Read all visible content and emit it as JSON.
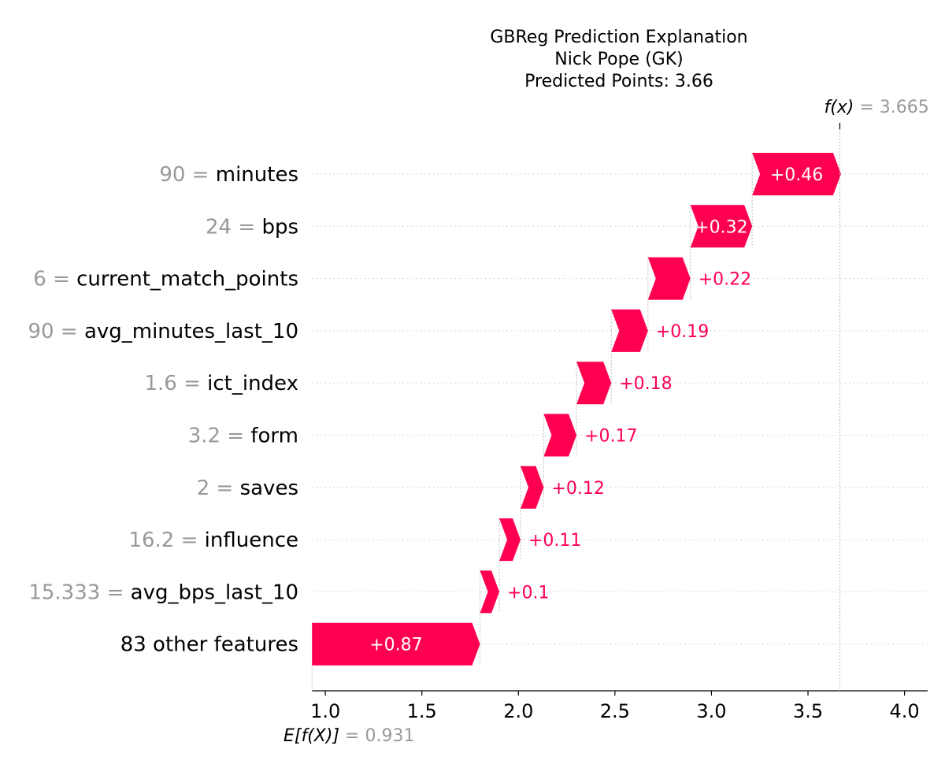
{
  "chart_data": {
    "type": "waterfall",
    "title_lines": [
      "GBReg Prediction Explanation",
      "Nick Pope (GK)",
      "Predicted Points: 3.66"
    ],
    "base_value": 0.931,
    "base_label": "E[f(X)]",
    "base_value_text": "= 0.931",
    "output_value": 3.665,
    "output_label": "f(x)",
    "output_value_text": "= 3.665",
    "xlim": [
      0.93,
      4.12
    ],
    "xticks": [
      1.0,
      1.5,
      2.0,
      2.5,
      3.0,
      3.5,
      4.0
    ],
    "xtick_labels": [
      "1.0",
      "1.5",
      "2.0",
      "2.5",
      "3.0",
      "3.5",
      "4.0"
    ],
    "features": [
      {
        "value": "90",
        "name": "minutes",
        "contribution": 0.46,
        "label": "+0.46"
      },
      {
        "value": "24",
        "name": "bps",
        "contribution": 0.32,
        "label": "+0.32"
      },
      {
        "value": "6",
        "name": "current_match_points",
        "contribution": 0.22,
        "label": "+0.22"
      },
      {
        "value": "90",
        "name": "avg_minutes_last_10",
        "contribution": 0.19,
        "label": "+0.19"
      },
      {
        "value": "1.6",
        "name": "ict_index",
        "contribution": 0.18,
        "label": "+0.18"
      },
      {
        "value": "3.2",
        "name": "form",
        "contribution": 0.17,
        "label": "+0.17"
      },
      {
        "value": "2",
        "name": "saves",
        "contribution": 0.12,
        "label": "+0.12"
      },
      {
        "value": "16.2",
        "name": "influence",
        "contribution": 0.11,
        "label": "+0.11"
      },
      {
        "value": "15.333",
        "name": "avg_bps_last_10",
        "contribution": 0.1,
        "label": "+0.1"
      },
      {
        "value": "",
        "name": "83 other features",
        "contribution": 0.87,
        "label": "+0.87"
      }
    ],
    "colors": {
      "positive": "#ff0051",
      "value_gray": "#999999",
      "bar_text_inside": "#ffffff"
    }
  }
}
